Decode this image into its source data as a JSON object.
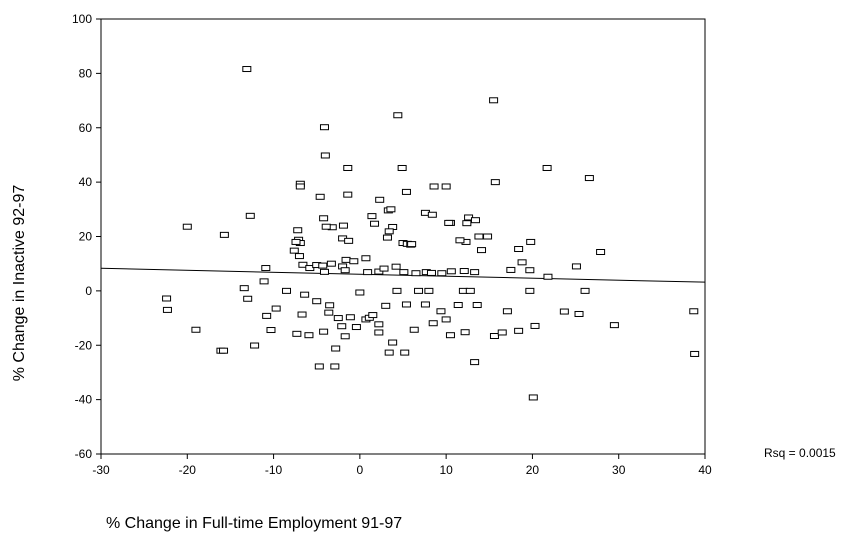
{
  "chart_data": {
    "type": "scatter",
    "xlabel": "% Change in Full-time Employment 91-97",
    "ylabel": "% Change in Inactive 92-97",
    "annotation": "Rsq = 0.0015",
    "xlim": [
      -30,
      40
    ],
    "ylim": [
      -60,
      100
    ],
    "xticks": [
      "-30",
      "-20",
      "-10",
      "0",
      "10",
      "20",
      "30",
      "40"
    ],
    "yticks": [
      "-60",
      "-40",
      "-20",
      "0",
      "20",
      "40",
      "60",
      "80",
      "100"
    ],
    "grid": false,
    "marker": "square-open",
    "fit_line": {
      "x": [
        -30,
        40
      ],
      "y": [
        8.3,
        3.2
      ]
    },
    "points": [
      [
        -13.1,
        81.6
      ],
      [
        15.5,
        70.1
      ],
      [
        4.4,
        64.6
      ],
      [
        -4.1,
        60.2
      ],
      [
        -4.0,
        49.8
      ],
      [
        -1.4,
        45.2
      ],
      [
        4.9,
        45.2
      ],
      [
        21.7,
        45.2
      ],
      [
        26.6,
        41.5
      ],
      [
        -6.9,
        39.4
      ],
      [
        -6.9,
        38.4
      ],
      [
        10.0,
        38.4
      ],
      [
        8.6,
        38.4
      ],
      [
        15.7,
        40.0
      ],
      [
        -1.4,
        35.4
      ],
      [
        5.4,
        36.4
      ],
      [
        -4.6,
        34.6
      ],
      [
        -3.2,
        23.4
      ],
      [
        -2.0,
        19.3
      ],
      [
        -1.3,
        18.4
      ],
      [
        -20.0,
        23.6
      ],
      [
        -15.7,
        20.6
      ],
      [
        -12.7,
        27.6
      ],
      [
        -7.2,
        22.3
      ],
      [
        -7.1,
        18.8
      ],
      [
        -6.9,
        17.6
      ],
      [
        -7.4,
        18.0
      ],
      [
        -4.2,
        26.7
      ],
      [
        -3.9,
        23.6
      ],
      [
        -1.9,
        24.0
      ],
      [
        1.4,
        27.5
      ],
      [
        1.7,
        24.7
      ],
      [
        2.3,
        33.5
      ],
      [
        3.3,
        29.6
      ],
      [
        3.6,
        30.0
      ],
      [
        3.8,
        23.5
      ],
      [
        3.4,
        21.9
      ],
      [
        3.2,
        19.6
      ],
      [
        5.0,
        17.6
      ],
      [
        5.5,
        17.3
      ],
      [
        5.9,
        17.0
      ],
      [
        6.0,
        17.2
      ],
      [
        7.6,
        28.7
      ],
      [
        8.4,
        28.0
      ],
      [
        10.5,
        25.0
      ],
      [
        10.3,
        25.0
      ],
      [
        12.4,
        24.9
      ],
      [
        12.6,
        27.0
      ],
      [
        13.4,
        26.0
      ],
      [
        14.8,
        20.0
      ],
      [
        13.8,
        20.0
      ],
      [
        12.3,
        18.0
      ],
      [
        11.6,
        18.6
      ],
      [
        18.4,
        15.4
      ],
      [
        19.8,
        18.0
      ],
      [
        18.8,
        10.5
      ],
      [
        -10.9,
        8.4
      ],
      [
        -7.6,
        14.8
      ],
      [
        -7.0,
        12.8
      ],
      [
        -6.6,
        9.6
      ],
      [
        -5.8,
        8.4
      ],
      [
        -5.0,
        9.5
      ],
      [
        -4.3,
        9.3
      ],
      [
        -4.1,
        7.0
      ],
      [
        -3.3,
        10.0
      ],
      [
        -2.0,
        9.0
      ],
      [
        -1.7,
        7.6
      ],
      [
        -1.6,
        11.4
      ],
      [
        -0.7,
        10.9
      ],
      [
        0.7,
        12.0
      ],
      [
        0.9,
        6.9
      ],
      [
        2.2,
        7.1
      ],
      [
        2.8,
        8.2
      ],
      [
        4.2,
        8.9
      ],
      [
        5.1,
        6.9
      ],
      [
        6.5,
        6.5
      ],
      [
        7.7,
        6.9
      ],
      [
        8.3,
        6.6
      ],
      [
        9.5,
        6.5
      ],
      [
        10.6,
        7.2
      ],
      [
        12.1,
        7.3
      ],
      [
        13.3,
        6.9
      ],
      [
        14.1,
        15.0
      ],
      [
        17.5,
        7.7
      ],
      [
        19.7,
        7.6
      ],
      [
        25.1,
        9.0
      ],
      [
        27.9,
        14.3
      ],
      [
        -8.5,
        0.0
      ],
      [
        -9.7,
        -6.5
      ],
      [
        -11.1,
        3.5
      ],
      [
        -13.4,
        1.0
      ],
      [
        -13.0,
        -2.9
      ],
      [
        -22.4,
        -2.8
      ],
      [
        -22.3,
        -7.0
      ],
      [
        -19.0,
        -14.3
      ],
      [
        -16.1,
        -22.0
      ],
      [
        -12.2,
        -20.1
      ],
      [
        -10.8,
        -9.2
      ],
      [
        -10.3,
        -14.4
      ],
      [
        -7.3,
        -15.8
      ],
      [
        -6.7,
        -8.7
      ],
      [
        -6.4,
        -1.4
      ],
      [
        -5.9,
        -16.3
      ],
      [
        -5.0,
        -3.8
      ],
      [
        -4.7,
        -27.8
      ],
      [
        -4.2,
        -15.0
      ],
      [
        -3.6,
        -8.0
      ],
      [
        -3.5,
        -5.3
      ],
      [
        -2.8,
        -21.2
      ],
      [
        -2.9,
        -27.8
      ],
      [
        -2.5,
        -10.0
      ],
      [
        -2.1,
        -13.0
      ],
      [
        -1.7,
        -16.7
      ],
      [
        -1.1,
        -9.7
      ],
      [
        -0.4,
        -13.3
      ],
      [
        0.0,
        -0.6
      ],
      [
        0.7,
        -10.5
      ],
      [
        1.1,
        -9.9
      ],
      [
        1.5,
        -8.9
      ],
      [
        2.2,
        -15.3
      ],
      [
        2.2,
        -12.3
      ],
      [
        3.0,
        -5.5
      ],
      [
        3.4,
        -22.7
      ],
      [
        3.8,
        -19.0
      ],
      [
        4.3,
        0.0
      ],
      [
        5.2,
        -22.7
      ],
      [
        5.4,
        -5.0
      ],
      [
        6.3,
        -14.3
      ],
      [
        6.8,
        0.0
      ],
      [
        7.6,
        -5.0
      ],
      [
        8.0,
        0.0
      ],
      [
        8.5,
        -11.9
      ],
      [
        9.4,
        -7.5
      ],
      [
        10.0,
        -10.5
      ],
      [
        10.5,
        -16.3
      ],
      [
        11.4,
        -5.2
      ],
      [
        12.0,
        0.0
      ],
      [
        12.2,
        -15.2
      ],
      [
        12.8,
        0.0
      ],
      [
        13.3,
        -26.2
      ],
      [
        13.6,
        -5.2
      ],
      [
        15.6,
        -16.6
      ],
      [
        16.5,
        -15.3
      ],
      [
        17.1,
        -7.5
      ],
      [
        18.4,
        -14.7
      ],
      [
        19.7,
        0.0
      ],
      [
        20.3,
        -12.9
      ],
      [
        20.1,
        -39.2
      ],
      [
        21.8,
        5.2
      ],
      [
        23.7,
        -7.6
      ],
      [
        25.4,
        -8.5
      ],
      [
        26.1,
        0.0
      ],
      [
        29.5,
        -12.6
      ],
      [
        38.7,
        -7.5
      ],
      [
        38.8,
        -23.2
      ],
      [
        -15.8,
        -22.0
      ]
    ]
  }
}
